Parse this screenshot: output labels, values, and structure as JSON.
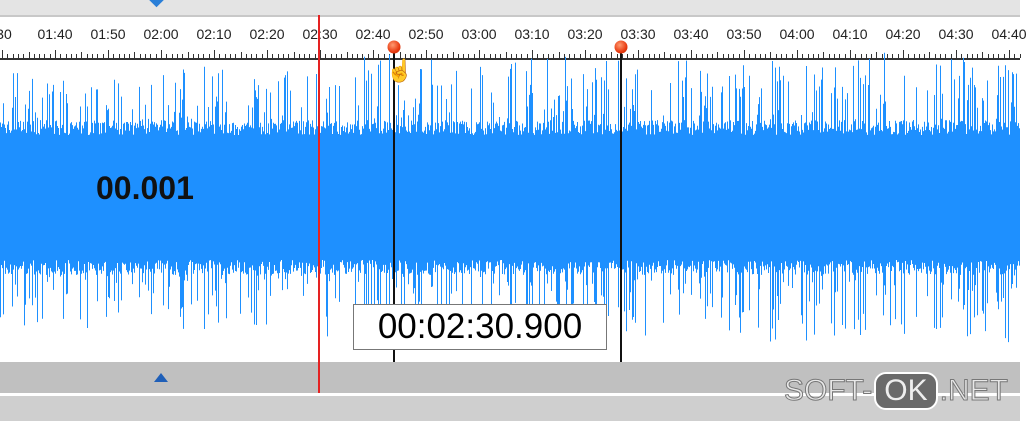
{
  "ruler": {
    "labels": [
      ":30",
      "01:40",
      "01:50",
      "02:00",
      "02:10",
      "02:20",
      "02:30",
      "02:40",
      "02:50",
      "03:00",
      "03:10",
      "03:20",
      "03:30",
      "03:40",
      "03:50",
      "04:00",
      "04:10",
      "04:20",
      "04:30",
      "04:40"
    ]
  },
  "track": {
    "label": "00.001",
    "waveform_color": "#1e90ff"
  },
  "playhead": {
    "time": "02:30",
    "color": "#e52222"
  },
  "markers": [
    {
      "time": "02:44"
    },
    {
      "time": "03:27"
    }
  ],
  "time_readout": "00:02:30.900",
  "watermark": {
    "left": "SOFT-",
    "mid": "OK",
    "right": ".NET"
  }
}
